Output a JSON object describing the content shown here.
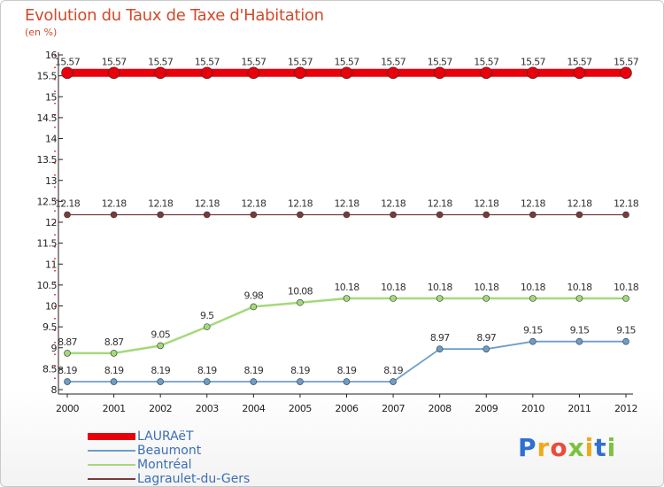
{
  "title": "Evolution du Taux de Taxe d'Habitation",
  "unit": "(en %)",
  "brand": {
    "letters": [
      "P",
      "r",
      "o",
      "x",
      "i",
      "t",
      "i"
    ],
    "colors": [
      "#2e6fd1",
      "#f2a81d",
      "#e94b3c",
      "#7cc242",
      "#f2a81d",
      "#2e6fd1",
      "#7cc242"
    ]
  },
  "chart_data": {
    "type": "line",
    "categories": [
      "2000",
      "2001",
      "2002",
      "2003",
      "2004",
      "2005",
      "2006",
      "2007",
      "2008",
      "2009",
      "2010",
      "2011",
      "2012"
    ],
    "ylim": [
      8,
      16
    ],
    "yticks": [
      8,
      8.5,
      9,
      9.5,
      10,
      10.5,
      11,
      11.5,
      12,
      12.5,
      13,
      13.5,
      14,
      14.5,
      15,
      15.5,
      16
    ],
    "ytick_labels": [
      "8",
      "8.5",
      "9",
      "9.5",
      "10",
      "10.5",
      "11",
      "11.5",
      "12",
      "12.5",
      "13",
      "13.5",
      "14",
      "14.5",
      "15",
      "15.5",
      "16"
    ],
    "legend_position": "bottom-left",
    "grid": false,
    "series": [
      {
        "name": "LAURAëT",
        "color": "#e8000b",
        "values": [
          15.57,
          15.57,
          15.57,
          15.57,
          15.57,
          15.57,
          15.57,
          15.57,
          15.57,
          15.57,
          15.57,
          15.57,
          15.57
        ],
        "labels": [
          "15.57",
          "15.57",
          "15.57",
          "15.57",
          "15.57",
          "15.57",
          "15.57",
          "15.57",
          "15.57",
          "15.57",
          "15.57",
          "15.57",
          "15.57"
        ]
      },
      {
        "name": "Beaumont",
        "color": "#6d9ec9",
        "values": [
          8.19,
          8.19,
          8.19,
          8.19,
          8.19,
          8.19,
          8.19,
          8.19,
          8.97,
          8.97,
          9.15,
          9.15,
          9.15
        ],
        "labels": [
          "8.19",
          "8.19",
          "8.19",
          "8.19",
          "8.19",
          "8.19",
          "8.19",
          "8.19",
          "8.97",
          "8.97",
          "9.15",
          "9.15",
          "9.15"
        ]
      },
      {
        "name": "Montréal",
        "color": "#a4d97a",
        "values": [
          8.87,
          8.87,
          9.05,
          9.5,
          9.98,
          10.08,
          10.18,
          10.18,
          10.18,
          10.18,
          10.18,
          10.18,
          10.18
        ],
        "labels": [
          "8.87",
          "8.87",
          "9.05",
          "9.5",
          "9.98",
          "10.08",
          "10.18",
          "10.18",
          "10.18",
          "10.18",
          "10.18",
          "10.18",
          "10.18"
        ]
      },
      {
        "name": "Lagraulet-du-Gers",
        "color": "#7a3a3a",
        "values": [
          12.18,
          12.18,
          12.18,
          12.18,
          12.18,
          12.18,
          12.18,
          12.18,
          12.18,
          12.18,
          12.18,
          12.18,
          12.18
        ],
        "labels": [
          "12.18",
          "12.18",
          "12.18",
          "12.18",
          "12.18",
          "12.18",
          "12.18",
          "12.18",
          "12.18",
          "12.18",
          "12.18",
          "12.18",
          "12.18"
        ]
      }
    ]
  }
}
